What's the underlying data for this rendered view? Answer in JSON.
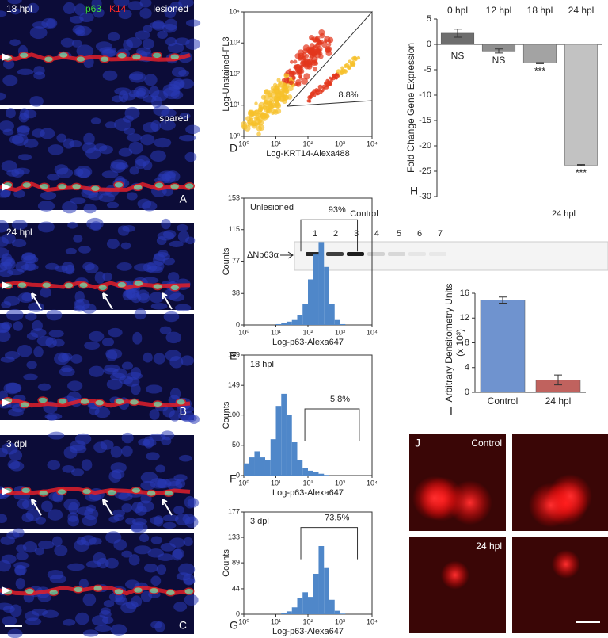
{
  "chart_data": [
    {
      "type": "scatter",
      "panel": "D",
      "xlabel": "Log-KRT14-Alexa488",
      "ylabel": "Log-Unstained-FL3",
      "log_scale": true,
      "xlim": [
        1,
        10000
      ],
      "ylim": [
        1,
        10000
      ],
      "xticks": [
        {
          "value": 1,
          "label": "10⁰"
        },
        {
          "value": 10,
          "label": "10¹"
        },
        {
          "value": 100,
          "label": "10²"
        },
        {
          "value": 1000,
          "label": "10³"
        },
        {
          "value": 10000,
          "label": "10⁴"
        }
      ],
      "yticks": [
        {
          "value": 1,
          "label": "10⁰"
        },
        {
          "value": 10,
          "label": "10¹"
        },
        {
          "value": 100,
          "label": "10²"
        },
        {
          "value": 1000,
          "label": "10³"
        },
        {
          "value": 10000,
          "label": "10⁴"
        }
      ],
      "gate_label": "8.8%"
    },
    {
      "type": "histogram",
      "panel": "E",
      "label": "Unlesioned",
      "xlabel": "Log-p63-Alexa647",
      "ylabel": "Counts",
      "log_scale": true,
      "color": "#4f87c9",
      "bins": [
        1,
        1.47,
        2.15,
        3.16,
        4.64,
        6.81,
        10,
        14.7,
        21.5,
        31.6,
        46.4,
        68.1,
        100,
        147,
        215,
        316,
        464,
        681,
        1000,
        1470,
        2150,
        3160,
        4640,
        6810,
        10000
      ],
      "values": [
        0,
        0,
        0,
        0,
        0,
        0,
        1,
        2,
        4,
        6,
        12,
        25,
        55,
        85,
        100,
        70,
        25,
        6,
        1,
        0,
        0,
        0,
        0,
        0
      ],
      "xlim": [
        1,
        10000
      ],
      "ylim": [
        0,
        153
      ],
      "xticks": [
        {
          "value": 1,
          "label": "10⁰"
        },
        {
          "value": 10,
          "label": "10¹"
        },
        {
          "value": 100,
          "label": "10²"
        },
        {
          "value": 1000,
          "label": "10³"
        },
        {
          "value": 10000,
          "label": "10⁴"
        }
      ],
      "yticks": [
        0,
        38,
        77,
        115,
        153
      ],
      "gate": {
        "range": [
          60,
          3500
        ],
        "level": 127,
        "label": "93%"
      }
    },
    {
      "type": "histogram",
      "panel": "F",
      "label": "18 hpl",
      "xlabel": "Log-p63-Alexa647",
      "ylabel": "Counts",
      "log_scale": true,
      "color": "#4f87c9",
      "bins": [
        1,
        1.47,
        2.15,
        3.16,
        4.64,
        6.81,
        10,
        14.7,
        21.5,
        31.6,
        46.4,
        68.1,
        100,
        147,
        215,
        316,
        464,
        681,
        1000,
        1470,
        2150,
        3160,
        4640,
        6810,
        10000
      ],
      "values": [
        20,
        30,
        40,
        30,
        25,
        60,
        115,
        135,
        100,
        55,
        25,
        12,
        8,
        6,
        3,
        1,
        0,
        0,
        0,
        0,
        0,
        0,
        0,
        0
      ],
      "xlim": [
        1,
        10000
      ],
      "ylim": [
        0,
        199
      ],
      "xticks": [
        {
          "value": 1,
          "label": "10⁰"
        },
        {
          "value": 10,
          "label": "10¹"
        },
        {
          "value": 100,
          "label": "10²"
        },
        {
          "value": 1000,
          "label": "10³"
        },
        {
          "value": 10000,
          "label": "10⁴"
        }
      ],
      "yticks": [
        0,
        50,
        100,
        149,
        199
      ],
      "gate": {
        "range": [
          80,
          4000
        ],
        "level": 110,
        "label": "5.8%"
      }
    },
    {
      "type": "histogram",
      "panel": "G",
      "label": "3 dpl",
      "xlabel": "Log-p63-Alexa647",
      "ylabel": "Counts",
      "log_scale": true,
      "color": "#4f87c9",
      "bins": [
        1,
        1.47,
        2.15,
        3.16,
        4.64,
        6.81,
        10,
        14.7,
        21.5,
        31.6,
        46.4,
        68.1,
        100,
        147,
        215,
        316,
        464,
        681,
        1000,
        1470,
        2150,
        3160,
        4640,
        6810,
        10000
      ],
      "values": [
        0,
        0,
        0,
        0,
        0,
        0,
        0,
        2,
        5,
        12,
        28,
        38,
        30,
        70,
        118,
        80,
        25,
        6,
        1,
        0,
        0,
        0,
        0,
        0
      ],
      "xlim": [
        1,
        10000
      ],
      "ylim": [
        0,
        177
      ],
      "xticks": [
        {
          "value": 1,
          "label": "10⁰"
        },
        {
          "value": 10,
          "label": "10¹"
        },
        {
          "value": 100,
          "label": "10²"
        },
        {
          "value": 1000,
          "label": "10³"
        },
        {
          "value": 10000,
          "label": "10⁴"
        }
      ],
      "yticks": [
        0,
        44,
        89,
        133,
        177
      ],
      "gate": {
        "range": [
          60,
          3500
        ],
        "level": 150,
        "label": "73.5%"
      }
    },
    {
      "type": "bar",
      "panel": "H",
      "ylabel": "Fold Change Gene Expression",
      "categories": [
        "0 hpl",
        "12 hpl",
        "18 hpl",
        "24 hpl"
      ],
      "values": [
        2.2,
        -1.3,
        -3.7,
        -23.8
      ],
      "errors": [
        0.8,
        0.4,
        0.1,
        0.1
      ],
      "annotations": [
        "NS",
        "NS",
        "***",
        "***"
      ],
      "colors": [
        "#6e6e6e",
        "#8f8f8f",
        "#a3a3a3",
        "#c2c2c2"
      ],
      "ylim": [
        -30,
        5
      ],
      "yticks": [
        -30,
        -25,
        -20,
        -15,
        -10,
        -5,
        0,
        5
      ]
    },
    {
      "type": "bar",
      "panel": "I",
      "ylabel": [
        "Arbitrary Densitometry Units",
        "(x 10³)"
      ],
      "categories": [
        "Control",
        "24 hpl"
      ],
      "values": [
        14.9,
        2.0
      ],
      "errors": [
        0.5,
        0.8
      ],
      "colors": [
        "#6f93cf",
        "#c0625e"
      ],
      "ylim": [
        0,
        16
      ],
      "yticks": [
        0,
        4,
        8,
        12,
        16
      ]
    }
  ],
  "micrographs": {
    "stain_1": "p63",
    "stain_2": "K14",
    "labels": [
      "18 hpl",
      "lesioned",
      "spared",
      "A",
      "24 hpl",
      "B",
      "3 dpl",
      "C"
    ]
  },
  "blot": {
    "groups": [
      "Control",
      "24 hpl"
    ],
    "lanes": [
      "1",
      "2",
      "3",
      "4",
      "5",
      "6",
      "7"
    ],
    "band": "ΔNp63α"
  },
  "fluorescence": {
    "panel": "J",
    "labels": [
      "Control",
      "24 hpl"
    ]
  }
}
